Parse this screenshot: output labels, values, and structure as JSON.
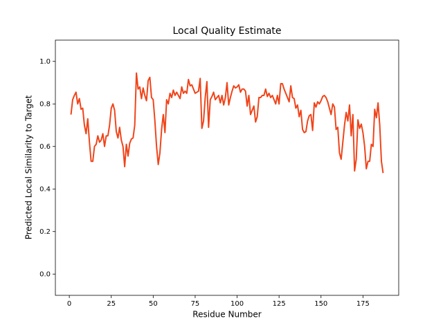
{
  "chart_data": {
    "type": "line",
    "title": "Local Quality Estimate",
    "x_label": "Residue Number",
    "y_label": "Predicted Local Similarity to Target",
    "color": "#f0441a",
    "x": [
      1,
      2,
      3,
      4,
      5,
      6,
      7,
      8,
      9,
      10,
      11,
      12,
      13,
      14,
      15,
      16,
      17,
      18,
      19,
      20,
      21,
      22,
      23,
      24,
      25,
      26,
      27,
      28,
      29,
      30,
      31,
      32,
      33,
      34,
      35,
      36,
      37,
      38,
      39,
      40,
      41,
      42,
      43,
      44,
      45,
      46,
      47,
      48,
      49,
      50,
      51,
      52,
      53,
      54,
      55,
      56,
      57,
      58,
      59,
      60,
      61,
      62,
      63,
      64,
      65,
      66,
      67,
      68,
      69,
      70,
      71,
      72,
      73,
      74,
      75,
      76,
      77,
      78,
      79,
      80,
      81,
      82,
      83,
      84,
      85,
      86,
      87,
      88,
      89,
      90,
      91,
      92,
      93,
      94,
      95,
      96,
      97,
      98,
      99,
      100,
      101,
      102,
      103,
      104,
      105,
      106,
      107,
      108,
      109,
      110,
      111,
      112,
      113,
      114,
      115,
      116,
      117,
      118,
      119,
      120,
      121,
      122,
      123,
      124,
      125,
      126,
      127,
      128,
      129,
      130,
      131,
      132,
      133,
      134,
      135,
      136,
      137,
      138,
      139,
      140,
      141,
      142,
      143,
      144,
      145,
      146,
      147,
      148,
      149,
      150,
      151,
      152,
      153,
      154,
      155,
      156,
      157,
      158,
      159,
      160,
      161,
      162,
      163,
      164,
      165,
      166,
      167,
      168,
      169,
      170,
      171,
      172,
      173,
      174,
      175,
      176,
      177,
      178,
      179,
      180,
      181,
      182,
      183,
      184,
      185,
      186,
      187
    ],
    "values": [
      0.75,
      0.82,
      0.84,
      0.855,
      0.8,
      0.825,
      0.775,
      0.78,
      0.7,
      0.66,
      0.73,
      0.62,
      0.53,
      0.53,
      0.6,
      0.61,
      0.65,
      0.62,
      0.63,
      0.66,
      0.6,
      0.65,
      0.65,
      0.7,
      0.78,
      0.8,
      0.77,
      0.67,
      0.64,
      0.69,
      0.63,
      0.6,
      0.505,
      0.61,
      0.555,
      0.615,
      0.635,
      0.64,
      0.7,
      0.945,
      0.87,
      0.88,
      0.825,
      0.875,
      0.84,
      0.815,
      0.91,
      0.925,
      0.83,
      0.82,
      0.72,
      0.6,
      0.515,
      0.57,
      0.68,
      0.75,
      0.665,
      0.82,
      0.8,
      0.85,
      0.83,
      0.865,
      0.84,
      0.855,
      0.84,
      0.825,
      0.88,
      0.85,
      0.86,
      0.85,
      0.915,
      0.885,
      0.89,
      0.87,
      0.85,
      0.855,
      0.86,
      0.92,
      0.685,
      0.72,
      0.83,
      0.905,
      0.69,
      0.82,
      0.835,
      0.855,
      0.82,
      0.83,
      0.84,
      0.805,
      0.84,
      0.795,
      0.83,
      0.9,
      0.795,
      0.83,
      0.86,
      0.885,
      0.875,
      0.88,
      0.89,
      0.855,
      0.87,
      0.87,
      0.86,
      0.79,
      0.84,
      0.75,
      0.77,
      0.79,
      0.715,
      0.74,
      0.83,
      0.83,
      0.84,
      0.84,
      0.87,
      0.835,
      0.85,
      0.83,
      0.84,
      0.82,
      0.8,
      0.84,
      0.8,
      0.895,
      0.895,
      0.87,
      0.85,
      0.83,
      0.81,
      0.885,
      0.83,
      0.825,
      0.78,
      0.795,
      0.74,
      0.77,
      0.68,
      0.665,
      0.67,
      0.72,
      0.745,
      0.75,
      0.675,
      0.805,
      0.785,
      0.81,
      0.8,
      0.815,
      0.835,
      0.84,
      0.83,
      0.81,
      0.78,
      0.75,
      0.8,
      0.785,
      0.68,
      0.69,
      0.57,
      0.54,
      0.62,
      0.7,
      0.76,
      0.72,
      0.795,
      0.65,
      0.75,
      0.485,
      0.54,
      0.725,
      0.685,
      0.705,
      0.665,
      0.6,
      0.495,
      0.53,
      0.53,
      0.61,
      0.6,
      0.775,
      0.735,
      0.805,
      0.7,
      0.53,
      0.475
    ],
    "xlim": [
      -8.3,
      196.3
    ],
    "xticks": [
      0,
      25,
      50,
      75,
      100,
      125,
      150,
      175
    ],
    "ylim": [
      -0.1,
      1.1
    ],
    "yticks": [
      {
        "value": 0,
        "label": "0.0"
      },
      0.2,
      0.4,
      0.6,
      0.8,
      {
        "value": 1,
        "label": "1.0"
      }
    ]
  }
}
